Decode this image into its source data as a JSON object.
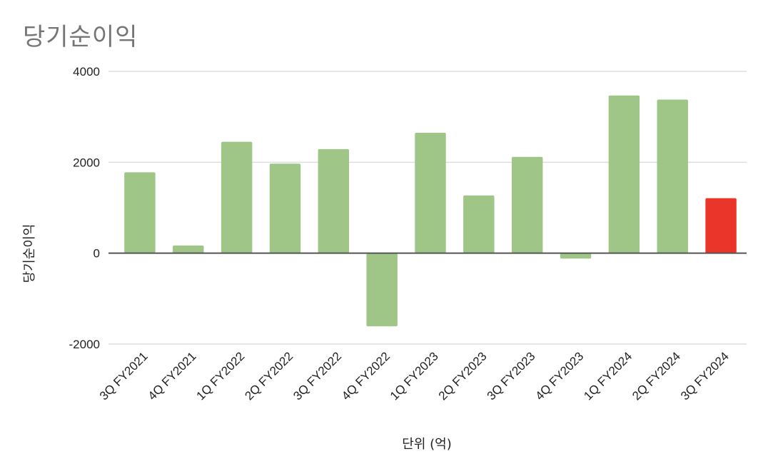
{
  "chart_data": {
    "type": "bar",
    "title": "당기순이익",
    "xlabel": "단위 (억)",
    "ylabel": "당기순이익",
    "categories": [
      "3Q FY2021",
      "4Q FY2021",
      "1Q FY2022",
      "2Q FY2022",
      "3Q FY2022",
      "4Q FY2022",
      "1Q FY2023",
      "2Q FY2023",
      "3Q FY2023",
      "4Q FY2023",
      "1Q FY2024",
      "2Q FY2024",
      "3Q FY2024"
    ],
    "values": [
      1780,
      170,
      2450,
      1970,
      2290,
      -1610,
      2650,
      1270,
      2120,
      -120,
      3470,
      3380,
      1210
    ],
    "ylim": [
      -2000,
      4000
    ],
    "yticks": [
      -2000,
      0,
      2000,
      4000
    ],
    "grid": true,
    "legend": "none",
    "colors": {
      "bar": "#9fc587",
      "highlight": "#e9352a",
      "highlight_category": "3Q FY2024",
      "grid": "#dddddd",
      "zero_line": "#555555",
      "title": "#757575"
    }
  }
}
